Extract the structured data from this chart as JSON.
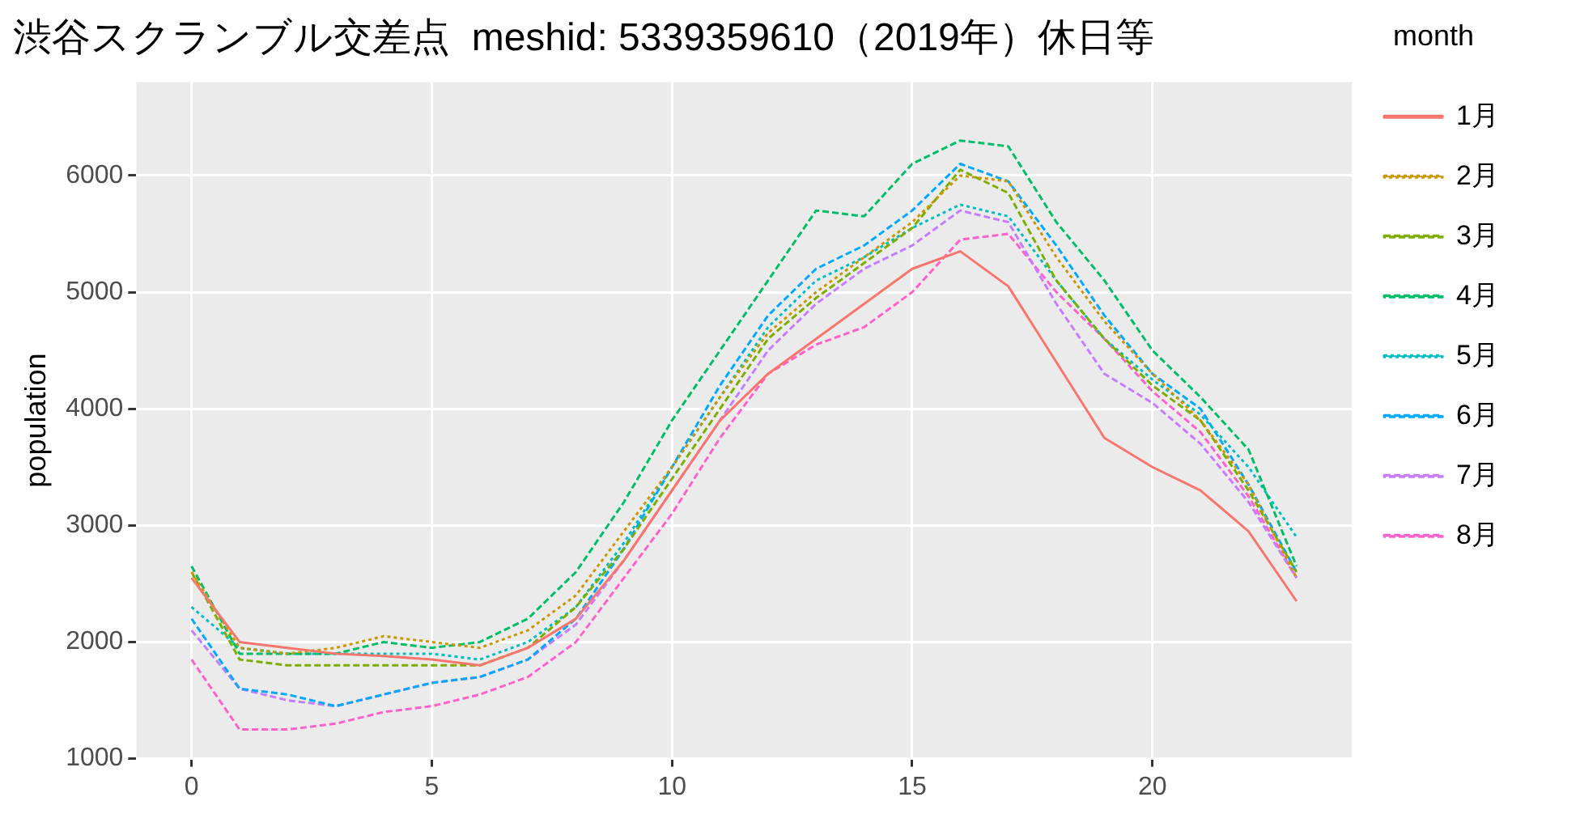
{
  "chart_data": {
    "type": "line",
    "title": "渋谷スクランブル交差点  meshid: 5339359610（2019年）休日等",
    "ylabel": "population",
    "legend_title": "month",
    "legend": "right",
    "grid": true,
    "marker": "none",
    "x": [
      0,
      1,
      2,
      3,
      4,
      5,
      6,
      7,
      8,
      9,
      10,
      11,
      12,
      13,
      14,
      15,
      16,
      17,
      18,
      19,
      20,
      21,
      22,
      23
    ],
    "xlim": [
      -1.15,
      24.15
    ],
    "xticks": [
      0,
      5,
      10,
      15,
      20
    ],
    "ylim": [
      1000,
      6800
    ],
    "yticks": [
      1000,
      2000,
      3000,
      4000,
      5000,
      6000
    ],
    "series": [
      {
        "name": "1月",
        "color": "#f8766d",
        "line_style": "solid",
        "values": [
          2550,
          2000,
          1950,
          1900,
          1880,
          1850,
          1800,
          1950,
          2200,
          2700,
          3300,
          3900,
          4300,
          4600,
          4900,
          5200,
          5350,
          5050,
          4400,
          3750,
          3500,
          3300,
          2950,
          2350
        ]
      },
      {
        "name": "2月",
        "color": "#cd9600",
        "line_style": "dotted",
        "values": [
          2600,
          1950,
          1900,
          1950,
          2050,
          2000,
          1950,
          2100,
          2400,
          2950,
          3500,
          4100,
          4650,
          5000,
          5300,
          5600,
          6000,
          5950,
          5300,
          4750,
          4300,
          3900,
          3350,
          2550
        ]
      },
      {
        "name": "3月",
        "color": "#7cae00",
        "line_style": "dashed",
        "values": [
          2600,
          1850,
          1800,
          1800,
          1800,
          1800,
          1800,
          1950,
          2300,
          2800,
          3400,
          4000,
          4600,
          4950,
          5250,
          5550,
          6050,
          5850,
          5100,
          4600,
          4200,
          3900,
          3300,
          2600
        ]
      },
      {
        "name": "4月",
        "color": "#00be67",
        "line_style": "dashed",
        "values": [
          2650,
          1900,
          1900,
          1900,
          2000,
          1950,
          2000,
          2200,
          2600,
          3200,
          3900,
          4500,
          5100,
          5700,
          5650,
          6100,
          6300,
          6250,
          5600,
          5100,
          4500,
          4100,
          3650,
          2650
        ]
      },
      {
        "name": "5月",
        "color": "#00bfc4",
        "line_style": "dotted",
        "values": [
          2300,
          1950,
          1900,
          1900,
          1900,
          1900,
          1850,
          2000,
          2300,
          2850,
          3500,
          4100,
          4700,
          5100,
          5300,
          5550,
          5750,
          5650,
          5100,
          4600,
          4250,
          3950,
          3500,
          2900
        ]
      },
      {
        "name": "6月",
        "color": "#00a9ff",
        "line_style": "dashed",
        "values": [
          2200,
          1600,
          1550,
          1450,
          1550,
          1650,
          1700,
          1850,
          2200,
          2800,
          3500,
          4200,
          4800,
          5200,
          5400,
          5700,
          6100,
          5950,
          5400,
          4800,
          4300,
          4000,
          3350,
          2600
        ]
      },
      {
        "name": "7月",
        "color": "#c77cff",
        "line_style": "dashed",
        "values": [
          2100,
          1600,
          1500,
          1450,
          1550,
          1650,
          1700,
          1850,
          2150,
          2700,
          3300,
          3900,
          4500,
          4900,
          5200,
          5400,
          5700,
          5600,
          4900,
          4300,
          4050,
          3700,
          3200,
          2550
        ]
      },
      {
        "name": "8月",
        "color": "#ff61cc",
        "line_style": "dashed",
        "values": [
          1850,
          1250,
          1250,
          1300,
          1400,
          1450,
          1550,
          1700,
          2000,
          2550,
          3100,
          3750,
          4300,
          4550,
          4700,
          5000,
          5450,
          5500,
          5000,
          4600,
          4150,
          3800,
          3250,
          2550
        ]
      }
    ]
  }
}
